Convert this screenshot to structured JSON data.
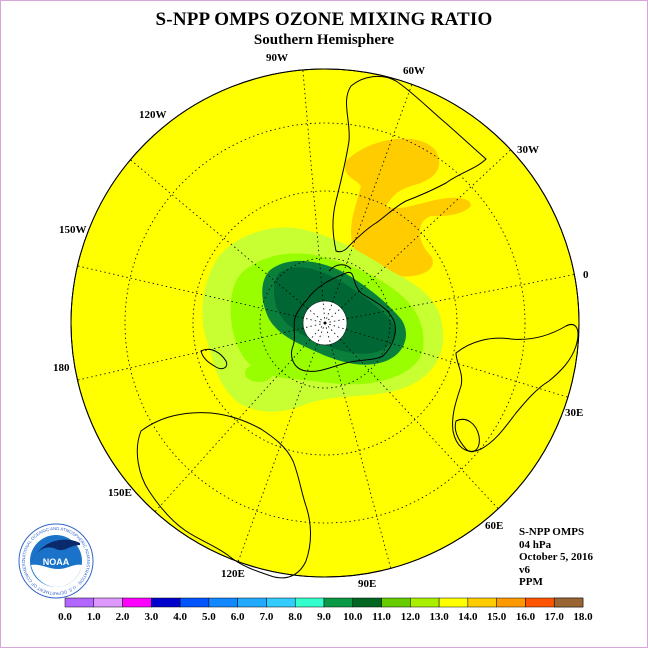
{
  "header": {
    "title": "S-NPP OMPS OZONE MIXING RATIO",
    "subtitle": "Southern Hemisphere"
  },
  "map": {
    "projection": "south polar stereographic",
    "longitude_labels": [
      "90W",
      "60W",
      "30W",
      "0",
      "30E",
      "60E",
      "90E",
      "120E",
      "150E",
      "180",
      "150W",
      "120W"
    ],
    "colors": {
      "background_level": "#ffff00",
      "level_10_11": "#99ff00",
      "level_11_12": "#c8ff33",
      "level_9_10": "#0a7f3c",
      "level_10_dark": "#006633",
      "level_13_14": "#ffcc00",
      "polar_night": "#ffffff"
    }
  },
  "info": {
    "satellite": "S-NPP OMPS",
    "pressure": "04 hPa",
    "date": "October 5, 2016",
    "version": "v6",
    "units": "PPM"
  },
  "logo": {
    "text": "NOAA",
    "ring_text": "NATIONAL OCEANIC AND ATMOSPHERIC ADMINISTRATION · U.S. DEPARTMENT OF COMMERCE"
  },
  "colorbar": {
    "labels": [
      "0.0",
      "1.0",
      "2.0",
      "3.0",
      "4.0",
      "5.0",
      "6.0",
      "7.0",
      "8.0",
      "9.0",
      "10.0",
      "11.0",
      "12.0",
      "13.0",
      "14.0",
      "15.0",
      "16.0",
      "17.0",
      "18.0"
    ],
    "colors": [
      "#b266ff",
      "#dd99ff",
      "#ff00ff",
      "#0000cc",
      "#0055ff",
      "#1188ff",
      "#22aaff",
      "#33ccff",
      "#33ffcc",
      "#0a9944",
      "#006622",
      "#66cc00",
      "#aaee00",
      "#ffff00",
      "#ffcc00",
      "#ff9900",
      "#ff5500",
      "#ff0000",
      "#996633"
    ]
  }
}
